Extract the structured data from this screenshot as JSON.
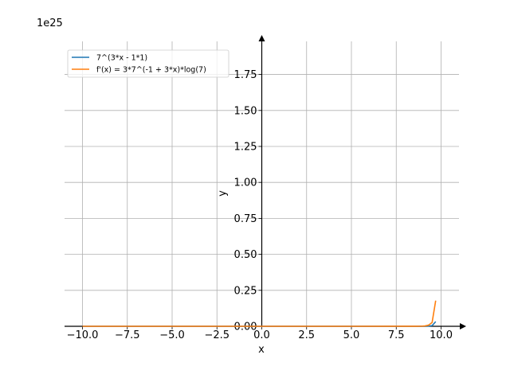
{
  "chart_data": {
    "type": "line",
    "offset_label": "1e25",
    "xlabel": "x",
    "ylabel": "y",
    "xlim": [
      -11.0,
      11.0
    ],
    "ylim": [
      0,
      1.98
    ],
    "y_scale_factor": "1e25",
    "grid": true,
    "legend_position": "top-left",
    "x_ticks": [
      -10.0,
      -7.5,
      -5.0,
      -2.5,
      0.0,
      2.5,
      5.0,
      7.5,
      10.0
    ],
    "x_tick_labels": [
      "−10.0",
      "−7.5",
      "−5.0",
      "−2.5",
      "0.0",
      "2.5",
      "5.0",
      "7.5",
      "10.0"
    ],
    "y_ticks": [
      0.0,
      0.25,
      0.5,
      0.75,
      1.0,
      1.25,
      1.5,
      1.75
    ],
    "y_tick_labels": [
      "0.00",
      "0.25",
      "0.50",
      "0.75",
      "1.00",
      "1.25",
      "1.50",
      "1.75"
    ],
    "series": [
      {
        "name": "7^(3*x - 1*1)",
        "color": "#1f77b4",
        "x": [
          -10,
          -5,
          0,
          5,
          8.6,
          8.9,
          9.1,
          9.3,
          9.5,
          9.7
        ],
        "y": [
          0,
          0,
          0,
          0,
          2e-05,
          0.00012,
          0.0004,
          0.0013,
          0.0045,
          0.0326
        ]
      },
      {
        "name": "f'(x) = 3*7^(-1 + 3*x)*log(7)",
        "color": "#ff7f0e",
        "x": [
          -10,
          -5,
          0,
          5,
          8.6,
          8.9,
          9.1,
          9.3,
          9.5,
          9.7
        ],
        "y": [
          0,
          0,
          0,
          0,
          0.00012,
          0.0007,
          0.0023,
          0.0078,
          0.0262,
          0.1784
        ]
      }
    ]
  }
}
